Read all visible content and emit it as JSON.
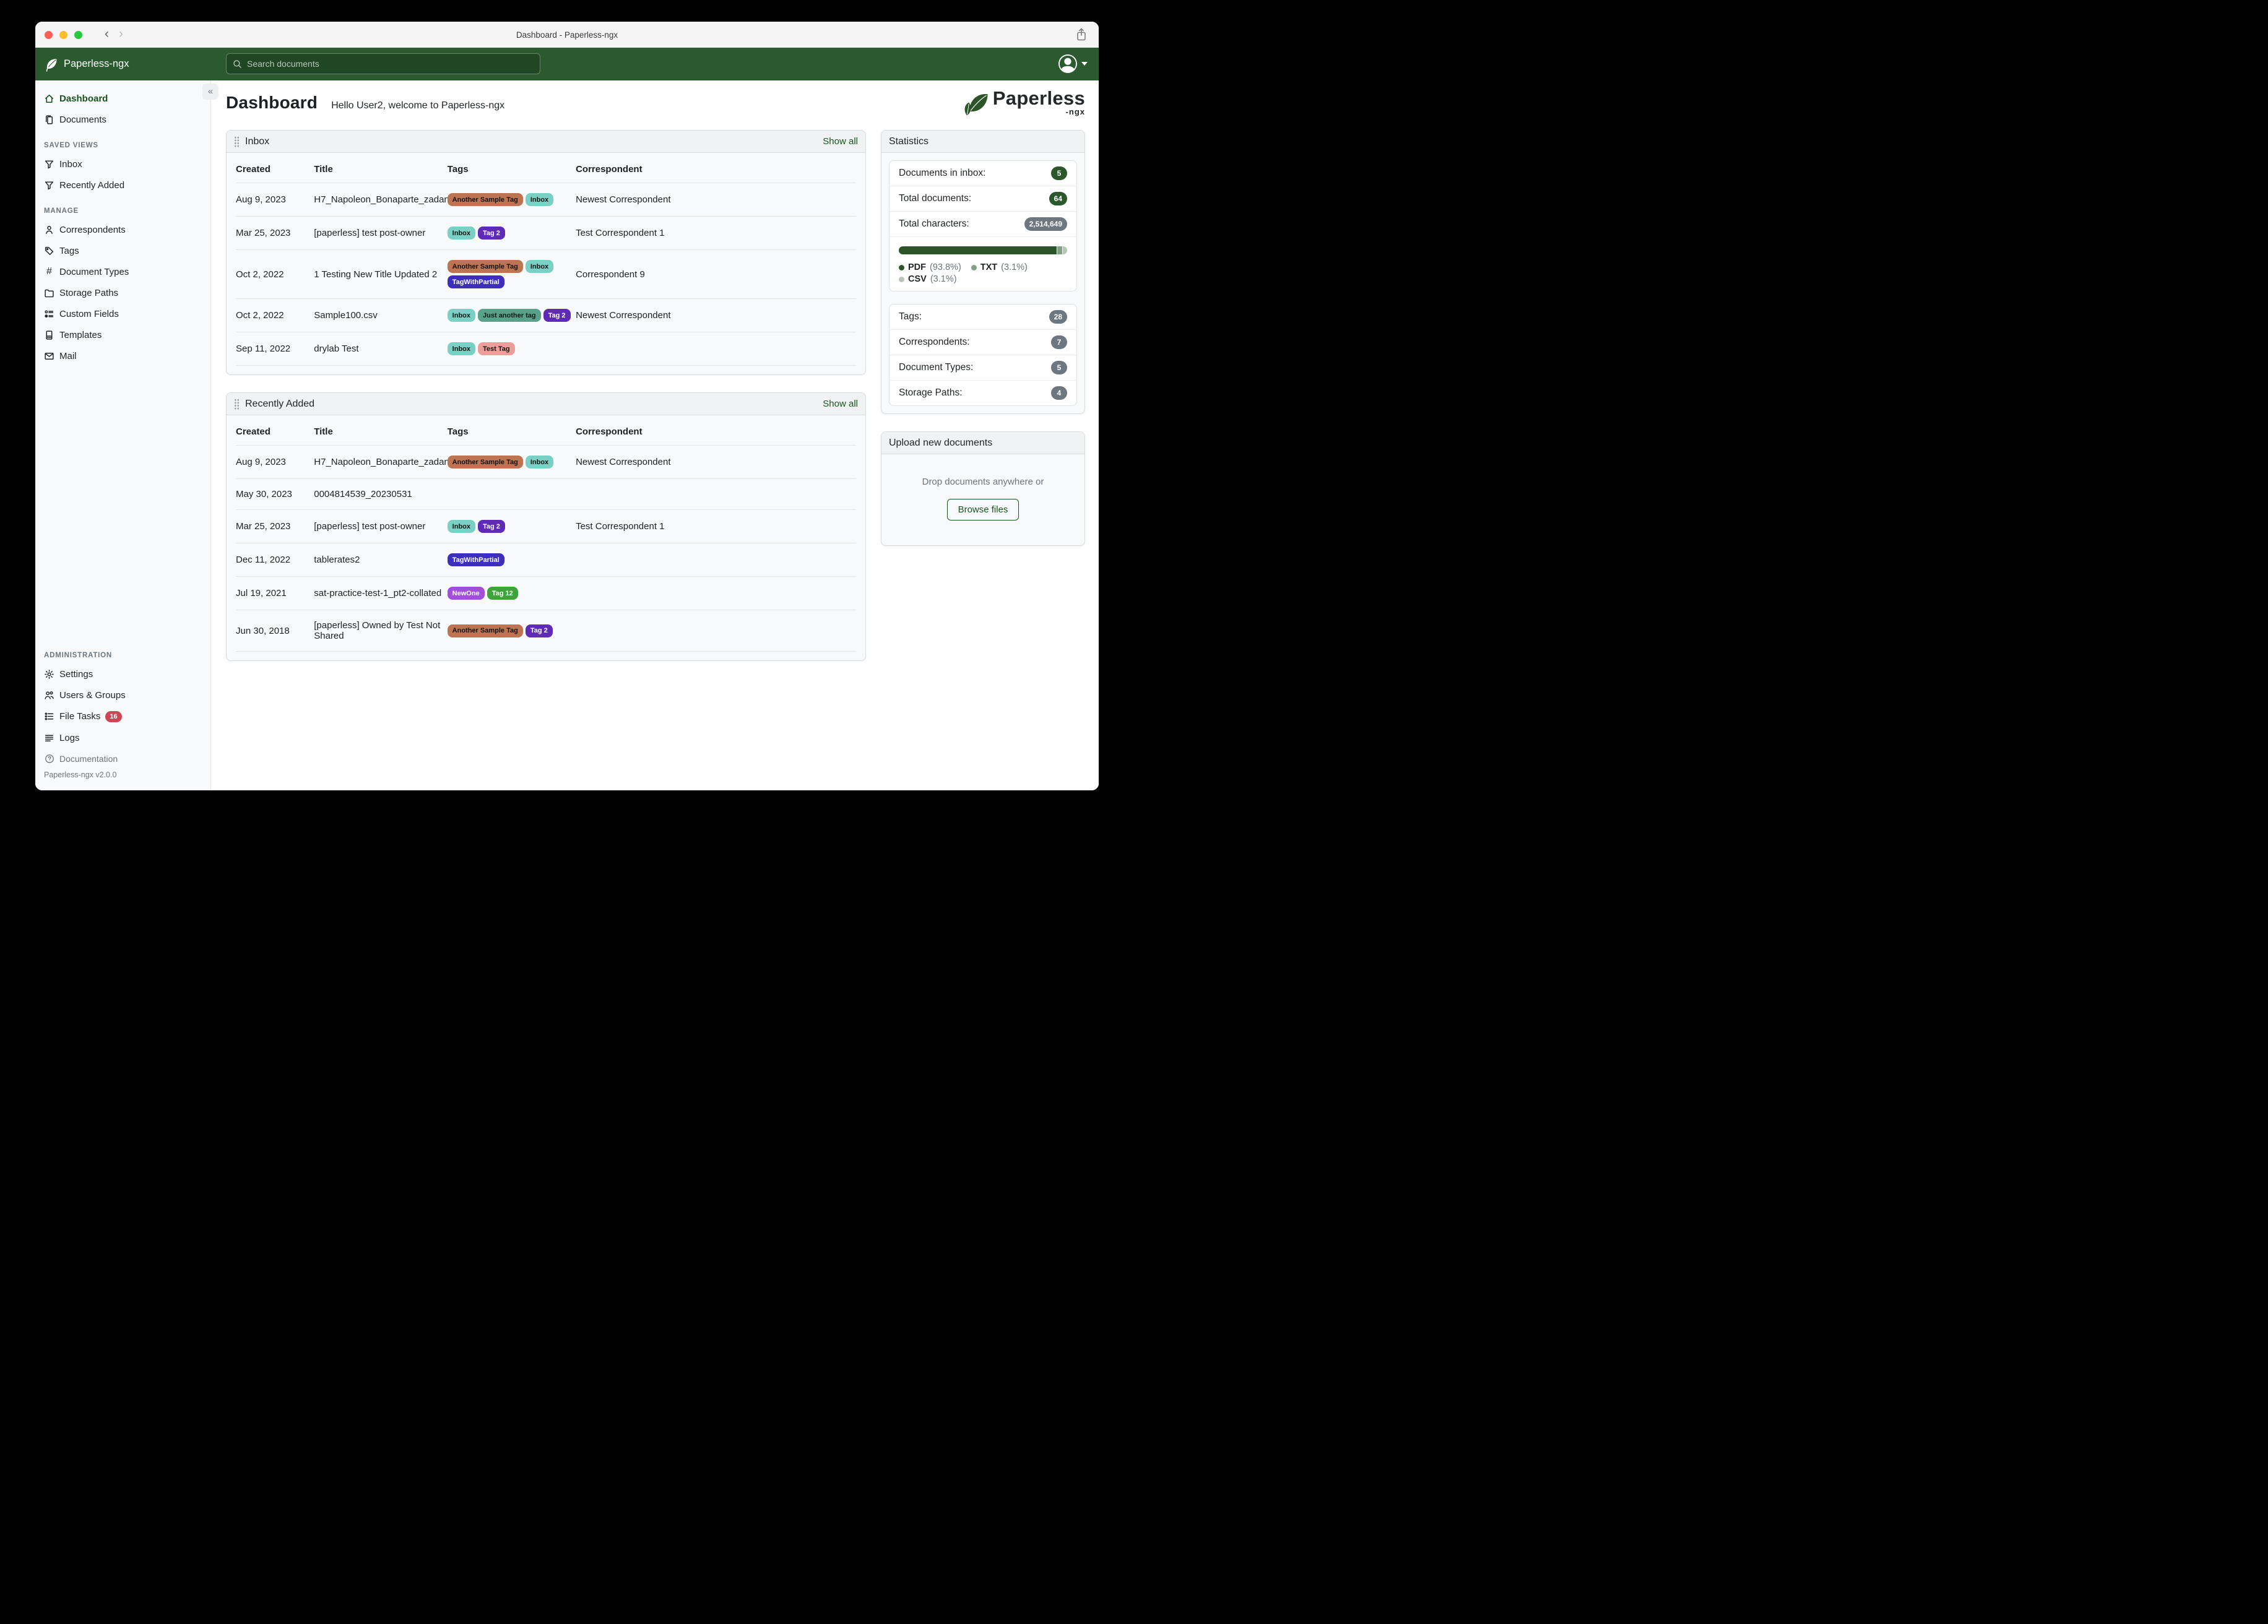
{
  "window": {
    "title": "Dashboard - Paperless-ngx"
  },
  "navbar": {
    "brand": "Paperless-ngx",
    "search_placeholder": "Search documents"
  },
  "sidebar": {
    "items_top": [
      {
        "label": "Dashboard",
        "active": true
      },
      {
        "label": "Documents",
        "active": false
      }
    ],
    "sections": [
      {
        "heading": "SAVED VIEWS",
        "items": [
          {
            "label": "Inbox"
          },
          {
            "label": "Recently Added"
          }
        ]
      },
      {
        "heading": "MANAGE",
        "items": [
          {
            "label": "Correspondents"
          },
          {
            "label": "Tags"
          },
          {
            "label": "Document Types"
          },
          {
            "label": "Storage Paths"
          },
          {
            "label": "Custom Fields"
          },
          {
            "label": "Templates"
          },
          {
            "label": "Mail"
          }
        ]
      },
      {
        "heading": "ADMINISTRATION",
        "items": [
          {
            "label": "Settings"
          },
          {
            "label": "Users & Groups"
          },
          {
            "label": "File Tasks",
            "badge": "16"
          },
          {
            "label": "Logs"
          }
        ]
      }
    ],
    "footer": {
      "documentation_label": "Documentation",
      "version": "Paperless-ngx v2.0.0"
    }
  },
  "page": {
    "title": "Dashboard",
    "greeting": "Hello User2, welcome to Paperless-ngx"
  },
  "logo": {
    "word": "Paperless",
    "suffix": "-ngx"
  },
  "columns": [
    "Created",
    "Title",
    "Tags",
    "Correspondent"
  ],
  "show_all_label": "Show all",
  "widgets": [
    {
      "title": "Inbox",
      "rows": [
        {
          "created": "Aug 9, 2023",
          "title": "H7_Napoleon_Bonaparte_zadanie",
          "tags": [
            "Another Sample Tag",
            "Inbox"
          ],
          "correspondent": "Newest Correspondent"
        },
        {
          "created": "Mar 25, 2023",
          "title": "[paperless] test post-owner",
          "tags": [
            "Inbox",
            "Tag 2"
          ],
          "correspondent": "Test Correspondent 1"
        },
        {
          "created": "Oct 2, 2022",
          "title": "1 Testing New Title Updated 2",
          "tags": [
            "Another Sample Tag",
            "Inbox",
            "TagWithPartial"
          ],
          "correspondent": "Correspondent 9"
        },
        {
          "created": "Oct 2, 2022",
          "title": "Sample100.csv",
          "tags": [
            "Inbox",
            "Just another tag",
            "Tag 2"
          ],
          "correspondent": "Newest Correspondent"
        },
        {
          "created": "Sep 11, 2022",
          "title": "drylab Test",
          "tags": [
            "Inbox",
            "Test Tag"
          ],
          "correspondent": ""
        }
      ]
    },
    {
      "title": "Recently Added",
      "rows": [
        {
          "created": "Aug 9, 2023",
          "title": "H7_Napoleon_Bonaparte_zadanie",
          "tags": [
            "Another Sample Tag",
            "Inbox"
          ],
          "correspondent": "Newest Correspondent"
        },
        {
          "created": "May 30, 2023",
          "title": "0004814539_20230531",
          "tags": [],
          "correspondent": ""
        },
        {
          "created": "Mar 25, 2023",
          "title": "[paperless] test post-owner",
          "tags": [
            "Inbox",
            "Tag 2"
          ],
          "correspondent": "Test Correspondent 1"
        },
        {
          "created": "Dec 11, 2022",
          "title": "tablerates2",
          "tags": [
            "TagWithPartial"
          ],
          "correspondent": ""
        },
        {
          "created": "Jul 19, 2021",
          "title": "sat-practice-test-1_pt2-collated",
          "tags": [
            "NewOne",
            "Tag 12"
          ],
          "correspondent": ""
        },
        {
          "created": "Jun 30, 2018",
          "title": "[paperless] Owned by Test Not Shared",
          "tags": [
            "Another Sample Tag",
            "Tag 2"
          ],
          "correspondent": ""
        }
      ]
    }
  ],
  "tag_palette": {
    "Another Sample Tag": {
      "bg": "#bd7452",
      "fg": "#131110"
    },
    "Inbox": {
      "bg": "#79d1c6",
      "fg": "#0e1514"
    },
    "Tag 2": {
      "bg": "#5f2ab5",
      "fg": "#ffffff"
    },
    "TagWithPartial": {
      "bg": "#3d2ebc",
      "fg": "#ffffff"
    },
    "Just another tag": {
      "bg": "#57a288",
      "fg": "#0f1a16"
    },
    "Test Tag": {
      "bg": "#eb9f9b",
      "fg": "#1a1211"
    },
    "NewOne": {
      "bg": "#a14edb",
      "fg": "#ffffff"
    },
    "Tag 12": {
      "bg": "#3fa33c",
      "fg": "#ffffff"
    }
  },
  "statistics": {
    "title": "Statistics",
    "doc_counts": [
      {
        "label": "Documents in inbox:",
        "value": "5",
        "color": "green"
      },
      {
        "label": "Total documents:",
        "value": "64",
        "color": "green"
      },
      {
        "label": "Total characters:",
        "value": "2,514,649",
        "color": "gray"
      }
    ],
    "file_types": [
      {
        "label": "PDF",
        "pct": "93.8%",
        "color": "#2b5429"
      },
      {
        "label": "TXT",
        "pct": "3.1%",
        "color": "#82a283"
      },
      {
        "label": "CSV",
        "pct": "3.1%",
        "color": "#b7c7b7"
      }
    ],
    "object_counts": [
      {
        "label": "Tags:",
        "value": "28",
        "color": "gray"
      },
      {
        "label": "Correspondents:",
        "value": "7",
        "color": "gray"
      },
      {
        "label": "Document Types:",
        "value": "5",
        "color": "gray"
      },
      {
        "label": "Storage Paths:",
        "value": "4",
        "color": "gray"
      }
    ]
  },
  "upload": {
    "title": "Upload new documents",
    "drop_text": "Drop documents anywhere or",
    "browse_label": "Browse files"
  },
  "colors": {
    "brand_green": "#2b5a2e",
    "accent_green": "#17541f",
    "badge_green": "#2c572c",
    "badge_gray": "#6e7680",
    "badge_red": "#ce4653",
    "traffic_red": "#ff5f57",
    "traffic_yellow": "#febc2e",
    "traffic_green": "#28c840"
  }
}
